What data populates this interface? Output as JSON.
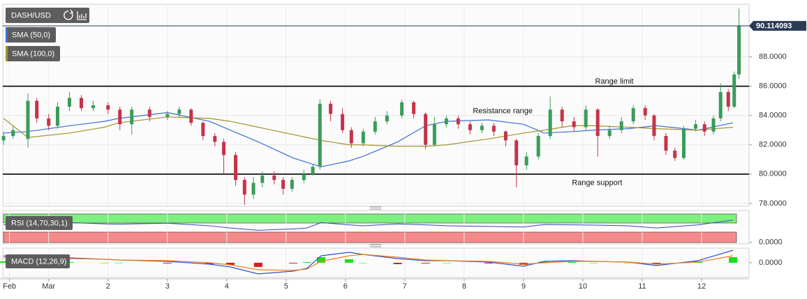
{
  "chart_data": [
    {
      "type": "candlestick",
      "title": "DASH/USD",
      "xlim": [
        0.18,
        12.8
      ],
      "ylim": [
        77.85,
        91.5
      ],
      "yticks": [
        {
          "value": 78,
          "label": "78.0000"
        },
        {
          "value": 80,
          "label": "80.0000"
        },
        {
          "value": 82,
          "label": "82.0000"
        },
        {
          "value": 84,
          "label": "84.0000"
        },
        {
          "value": 86,
          "label": "86.0000"
        },
        {
          "value": 88,
          "label": "88.0000"
        }
      ],
      "grid": true,
      "up_color": "#3a9c59",
      "down_color": "#c4344a",
      "x": [
        0.24,
        0.4,
        0.65,
        0.8,
        1.0,
        1.15,
        1.35,
        1.55,
        1.75,
        2,
        2.2,
        2.4,
        2.7,
        3,
        3.2,
        3.4,
        3.6,
        3.8,
        3.95,
        4.15,
        4.3,
        4.45,
        4.6,
        4.8,
        4.95,
        5.1,
        5.3,
        5.45,
        5.57,
        5.75,
        5.95,
        6.1,
        6.3,
        6.5,
        6.7,
        6.95,
        7.15,
        7.35,
        7.5,
        7.7,
        7.9,
        8.1,
        8.3,
        8.5,
        8.7,
        8.88,
        9.05,
        9.25,
        9.45,
        9.65,
        9.85,
        10.05,
        10.25,
        10.45,
        10.65,
        10.85,
        11.05,
        11.2,
        11.4,
        11.55,
        11.7,
        11.9,
        12.05,
        12.2,
        12.32,
        12.45,
        12.55,
        12.63
      ],
      "open": [
        82.3,
        82.6,
        82.4,
        85.0,
        83.8,
        83.3,
        84.6,
        85.2,
        84.5,
        84.7,
        84.4,
        83.4,
        84.4,
        83.9,
        84.1,
        84.4,
        83.5,
        82.6,
        82.2,
        81.3,
        79.6,
        78.6,
        79.4,
        79.9,
        79.6,
        79.0,
        79.6,
        80.0,
        80.5,
        84.8,
        84.1,
        83.0,
        82.1,
        82.9,
        83.6,
        84.0,
        84.9,
        84.1,
        82.0,
        83.4,
        83.8,
        83.4,
        83.0,
        83.3,
        82.9,
        82.3,
        80.6,
        81.2,
        82.6,
        84.4,
        83.6,
        83.2,
        84.4,
        82.6,
        83.0,
        83.6,
        84.5,
        84.0,
        82.6,
        81.6,
        81.1,
        83.1,
        83.4,
        82.9,
        83.8,
        85.6,
        84.6,
        86.8
      ],
      "high": [
        82.9,
        83.3,
        85.5,
        85.2,
        84.1,
        84.9,
        85.6,
        85.4,
        85.0,
        84.9,
        84.6,
        84.6,
        84.6,
        84.3,
        84.6,
        84.5,
        83.6,
        82.8,
        82.4,
        81.5,
        79.8,
        79.8,
        80.2,
        80.2,
        79.8,
        79.8,
        80.3,
        80.7,
        85.1,
        85.0,
        84.5,
        83.2,
        83.1,
        83.9,
        84.3,
        85.1,
        85.0,
        84.2,
        83.9,
        84.0,
        84.0,
        83.6,
        83.5,
        83.5,
        83.0,
        82.4,
        81.5,
        82.8,
        85.3,
        84.6,
        83.9,
        84.7,
        84.5,
        83.3,
        83.9,
        84.7,
        84.7,
        84.1,
        82.8,
        81.8,
        83.3,
        83.7,
        83.6,
        84.0,
        86.2,
        85.8,
        87.0,
        91.3
      ],
      "low": [
        82.0,
        82.4,
        81.8,
        83.5,
        83.0,
        83.1,
        84.3,
        84.3,
        84.3,
        84.1,
        83.0,
        82.7,
        83.6,
        83.7,
        83.9,
        83.3,
        82.3,
        81.9,
        80.0,
        79.2,
        77.9,
        78.3,
        79.1,
        79.3,
        78.6,
        78.8,
        79.4,
        79.9,
        80.3,
        83.6,
        82.8,
        81.8,
        81.9,
        82.7,
        83.4,
        83.8,
        83.8,
        81.7,
        81.9,
        83.2,
        83.1,
        82.7,
        82.8,
        82.6,
        81.9,
        79.1,
        80.3,
        81.0,
        82.4,
        83.2,
        82.9,
        83.0,
        81.2,
        82.4,
        82.8,
        83.4,
        83.7,
        82.3,
        81.3,
        80.9,
        81.0,
        82.9,
        82.6,
        82.7,
        83.6,
        84.3,
        84.5,
        86.5
      ],
      "close": [
        82.6,
        83.0,
        85.0,
        83.8,
        83.3,
        84.6,
        85.2,
        84.5,
        84.7,
        84.4,
        83.4,
        84.4,
        83.9,
        84.1,
        84.4,
        83.5,
        82.6,
        82.2,
        81.3,
        79.6,
        78.6,
        79.4,
        79.9,
        79.6,
        79.0,
        79.6,
        80.0,
        80.5,
        84.8,
        84.1,
        83.0,
        82.1,
        82.9,
        83.6,
        84.0,
        84.9,
        84.1,
        82.0,
        83.4,
        83.8,
        83.4,
        83.0,
        83.3,
        82.9,
        82.3,
        80.6,
        81.2,
        82.6,
        84.4,
        83.6,
        83.2,
        84.4,
        82.6,
        83.0,
        83.6,
        84.5,
        84.0,
        82.6,
        81.6,
        81.1,
        83.1,
        83.4,
        82.9,
        83.8,
        85.6,
        84.6,
        86.8,
        90.1
      ],
      "series": [
        {
          "name": "SMA (50,0)",
          "color": "#3a6fd1",
          "x": [
            0.24,
            0.65,
            1.35,
            1.94,
            2.18,
            3.0,
            3.71,
            4.06,
            4.53,
            5.12,
            5.35,
            5.59,
            6.06,
            6.29,
            6.88,
            7.35,
            7.71,
            8.41,
            9.0,
            9.35,
            9.82,
            10.18,
            10.76,
            11.24,
            11.94,
            12.53
          ],
          "values": [
            82.8,
            82.9,
            83.3,
            83.6,
            83.8,
            84.2,
            83.6,
            83.0,
            82.2,
            81.1,
            80.8,
            80.5,
            80.9,
            81.2,
            82.2,
            83.3,
            83.6,
            83.7,
            83.4,
            82.8,
            82.9,
            83.0,
            83.1,
            83.3,
            83.0,
            83.5
          ]
        },
        {
          "name": "SMA (100,0)",
          "color": "#a69329",
          "x": [
            0.24,
            0.65,
            1.35,
            1.94,
            2.18,
            3.0,
            3.71,
            4.06,
            4.53,
            5.12,
            5.35,
            5.59,
            6.06,
            6.29,
            6.88,
            7.35,
            7.71,
            8.41,
            9.0,
            9.35,
            9.82,
            10.18,
            10.76,
            11.24,
            11.94,
            12.53
          ],
          "values": [
            83.8,
            82.5,
            82.8,
            83.2,
            83.5,
            83.9,
            83.8,
            83.6,
            83.2,
            82.7,
            82.5,
            82.3,
            82.0,
            82.0,
            81.9,
            81.9,
            82.0,
            82.4,
            82.8,
            83.0,
            83.3,
            83.3,
            83.2,
            83.1,
            83.0,
            83.2
          ]
        }
      ],
      "hlines": [
        86,
        80
      ],
      "annotations": [
        {
          "text": "Range limit",
          "x": 10.53,
          "y": 86.3
        },
        {
          "text": "Resistance range",
          "x": 8.65,
          "y": 84.3
        },
        {
          "text": "Range support",
          "x": 10.24,
          "y": 79.4
        }
      ],
      "last_price": 90.114093
    },
    {
      "type": "line",
      "title": "RSI (14,70,30,1)",
      "xlim": [
        0.18,
        12.8
      ],
      "ylim": [
        -5,
        100
      ],
      "yticks": [
        {
          "value": 0,
          "label": "0.0000"
        }
      ],
      "series": [
        {
          "color": "#3548c4",
          "x": [
            0.24,
            0.65,
            1.35,
            1.94,
            2.18,
            3.0,
            3.71,
            4.06,
            4.53,
            5.12,
            5.35,
            5.59,
            6.06,
            6.29,
            6.88,
            7.35,
            7.71,
            8.41,
            9.0,
            9.35,
            9.82,
            10.18,
            10.76,
            11.24,
            11.94,
            12.53
          ],
          "values": [
            55,
            60,
            62,
            58,
            57,
            60,
            52,
            45,
            38,
            42,
            45,
            62,
            55,
            52,
            58,
            55,
            52,
            50,
            48,
            56,
            55,
            54,
            52,
            45,
            55,
            70
          ]
        }
      ]
    },
    {
      "type": "macd",
      "title": "MACD (12,26,9)",
      "xlim": [
        0.18,
        12.8
      ],
      "ylim": [
        -2.1,
        2.1
      ],
      "yticks": [
        {
          "value": 0,
          "label": "0.0000"
        }
      ],
      "xticks": [
        {
          "value": 0.34,
          "label": "Feb"
        },
        {
          "value": 1,
          "label": "Mar"
        },
        2,
        3,
        4,
        5,
        6,
        7,
        8,
        9,
        10,
        11,
        12
      ],
      "x": [
        0.24,
        0.65,
        1.35,
        1.94,
        2.18,
        3.0,
        3.71,
        4.06,
        4.53,
        5.12,
        5.35,
        5.59,
        6.06,
        6.29,
        6.88,
        7.35,
        7.71,
        8.41,
        9.0,
        9.35,
        9.82,
        10.18,
        10.76,
        11.24,
        11.94,
        12.53
      ],
      "histogram": [
        0.2,
        0,
        0.1,
        0,
        0,
        -0.1,
        -0.2,
        -0.3,
        -0.6,
        -0.1,
        0.1,
        0.8,
        0.5,
        0,
        -0.2,
        -0.1,
        0,
        -0.1,
        -0.3,
        0.2,
        0.1,
        0,
        0,
        -0.2,
        0.2,
        0.8
      ],
      "up_color": "#19e019",
      "down_color": "#e01b1b",
      "series": [
        {
          "color": "#2d4fd6",
          "values": [
            1.0,
            0.6,
            0.7,
            0.5,
            0.4,
            0.2,
            -0.2,
            -0.6,
            -1.6,
            -1.2,
            -0.8,
            1.0,
            1.5,
            1.2,
            0.6,
            0.3,
            0.3,
            0.1,
            -0.5,
            0.2,
            0.3,
            0.2,
            0.1,
            -0.4,
            0.3,
            1.8
          ]
        },
        {
          "color": "#f07f1a",
          "values": [
            0.8,
            0.6,
            0.6,
            0.5,
            0.4,
            0.3,
            0.0,
            -0.3,
            -1.0,
            -1.1,
            -0.9,
            0.2,
            1.0,
            1.2,
            0.8,
            0.4,
            0.3,
            0.2,
            -0.2,
            0.0,
            0.2,
            0.2,
            0.1,
            -0.2,
            0.1,
            1.0
          ]
        }
      ]
    }
  ]
}
